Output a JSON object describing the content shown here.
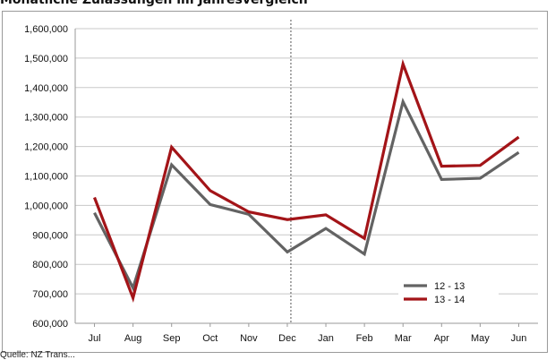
{
  "title": "Monatliche Zulassungen im Jahresvergleich",
  "source": "Quelle: NZ Trans...",
  "colors": {
    "series_12_13": "#636363",
    "series_13_14": "#a31418",
    "gridline": "#c8c8c8",
    "divider": "#555555"
  },
  "chart_data": {
    "type": "line",
    "categories": [
      "Jul",
      "Aug",
      "Sep",
      "Oct",
      "Nov",
      "Dec",
      "Jan",
      "Feb",
      "Mar",
      "Apr",
      "May",
      "Jun"
    ],
    "ylim": [
      600000,
      1600000
    ],
    "ytick_step": 100000,
    "ytick_labels": [
      "600,000",
      "700,000",
      "800,000",
      "900,000",
      "1,000,000",
      "1,100,000",
      "1,200,000",
      "1,300,000",
      "1,400,000",
      "1,500,000",
      "1,600,000"
    ],
    "grid": true,
    "legend_position": "bottom-right",
    "divider_after_category": "Dec",
    "series": [
      {
        "name": "12 - 13",
        "color": "#636363",
        "values": [
          975000,
          720000,
          1138000,
          1003000,
          970000,
          842000,
          922000,
          835000,
          1352000,
          1088000,
          1092000,
          1180000
        ]
      },
      {
        "name": "13 - 14",
        "color": "#a31418",
        "values": [
          1027000,
          686000,
          1198000,
          1050000,
          978000,
          952000,
          968000,
          888000,
          1480000,
          1133000,
          1136000,
          1232000
        ]
      }
    ]
  }
}
